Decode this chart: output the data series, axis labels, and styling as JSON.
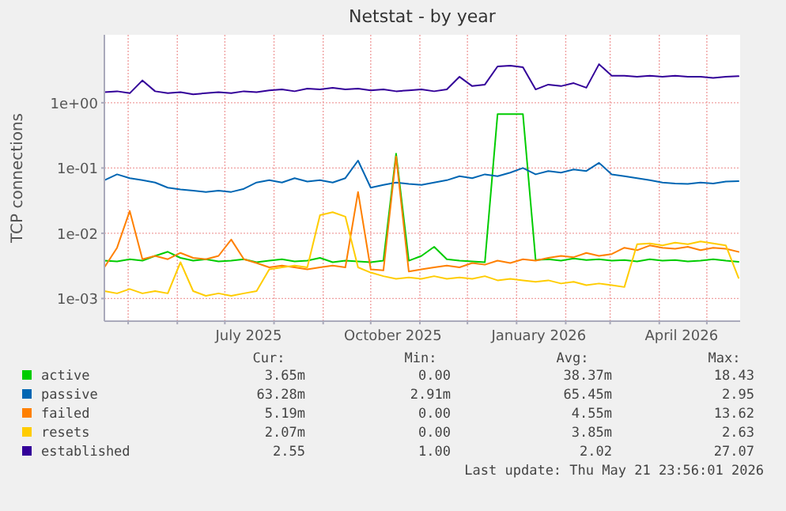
{
  "chart_data": {
    "type": "line",
    "title": "Netstat - by year",
    "ylabel": "TCP connections",
    "log": "y",
    "grid": true,
    "legend": "bottom",
    "marker": "none",
    "line_style": "solid",
    "xlim": [
      "2025-04-16",
      "2026-05-22"
    ],
    "ylim": [
      0.00045,
      11
    ],
    "xticks": [
      {
        "value": "2025-05-01",
        "label": null
      },
      {
        "value": "2025-06-01",
        "label": null
      },
      {
        "value": "2025-07-01",
        "label": null
      },
      {
        "value": "2025-07-16",
        "label": "July 2025"
      },
      {
        "value": "2025-08-01",
        "label": null
      },
      {
        "value": "2025-09-01",
        "label": null
      },
      {
        "value": "2025-10-01",
        "label": null
      },
      {
        "value": "2025-10-15",
        "label": "October 2025"
      },
      {
        "value": "2025-11-01",
        "label": null
      },
      {
        "value": "2025-12-01",
        "label": null
      },
      {
        "value": "2026-01-01",
        "label": null
      },
      {
        "value": "2026-01-15",
        "label": "January 2026"
      },
      {
        "value": "2026-02-01",
        "label": null
      },
      {
        "value": "2026-03-01",
        "label": null
      },
      {
        "value": "2026-04-01",
        "label": null
      },
      {
        "value": "2026-04-15",
        "label": "April 2026"
      },
      {
        "value": "2026-05-01",
        "label": null
      }
    ],
    "yticks": [
      {
        "value": 0.001,
        "label": "1e-03"
      },
      {
        "value": 0.01,
        "label": "1e-02"
      },
      {
        "value": 0.1,
        "label": "1e-01"
      },
      {
        "value": 1,
        "label": "1e+00"
      }
    ],
    "x": [
      "2025-04-16",
      "2025-04-24",
      "2025-05-02",
      "2025-05-10",
      "2025-05-18",
      "2025-05-26",
      "2025-06-03",
      "2025-06-11",
      "2025-06-19",
      "2025-06-27",
      "2025-07-05",
      "2025-07-13",
      "2025-07-21",
      "2025-07-29",
      "2025-08-06",
      "2025-08-14",
      "2025-08-22",
      "2025-08-30",
      "2025-09-07",
      "2025-09-15",
      "2025-09-23",
      "2025-10-01",
      "2025-10-09",
      "2025-10-17",
      "2025-10-25",
      "2025-11-02",
      "2025-11-10",
      "2025-11-18",
      "2025-11-26",
      "2025-12-04",
      "2025-12-12",
      "2025-12-20",
      "2025-12-28",
      "2026-01-05",
      "2026-01-13",
      "2026-01-21",
      "2026-01-29",
      "2026-02-06",
      "2026-02-14",
      "2026-02-22",
      "2026-03-02",
      "2026-03-10",
      "2026-03-18",
      "2026-03-26",
      "2026-04-03",
      "2026-04-11",
      "2026-04-19",
      "2026-04-27",
      "2026-05-05",
      "2026-05-13",
      "2026-05-21"
    ],
    "series": [
      {
        "name": "active",
        "color": "#00cc00",
        "values": [
          0.0038,
          0.0037,
          0.004,
          0.0038,
          0.0045,
          0.0052,
          0.0042,
          0.0038,
          0.004,
          0.0037,
          0.0038,
          0.004,
          0.0036,
          0.0038,
          0.004,
          0.0037,
          0.0038,
          0.0042,
          0.0036,
          0.0038,
          0.0037,
          0.0036,
          0.0038,
          0.166,
          0.0038,
          0.0045,
          0.0062,
          0.004,
          0.0038,
          0.0037,
          0.0036,
          0.67,
          0.67,
          0.67,
          0.0039,
          0.004,
          0.0038,
          0.0041,
          0.0039,
          0.004,
          0.0038,
          0.0039,
          0.0037,
          0.004,
          0.0038,
          0.0039,
          0.0037,
          0.0038,
          0.004,
          0.0038,
          0.00365
        ]
      },
      {
        "name": "passive",
        "color": "#0066b3",
        "values": [
          0.065,
          0.08,
          0.07,
          0.065,
          0.06,
          0.05,
          0.047,
          0.045,
          0.043,
          0.045,
          0.043,
          0.048,
          0.06,
          0.065,
          0.06,
          0.07,
          0.062,
          0.065,
          0.06,
          0.07,
          0.13,
          0.05,
          0.055,
          0.06,
          0.057,
          0.055,
          0.06,
          0.065,
          0.075,
          0.07,
          0.08,
          0.075,
          0.085,
          0.1,
          0.08,
          0.09,
          0.085,
          0.095,
          0.09,
          0.12,
          0.08,
          0.075,
          0.07,
          0.065,
          0.06,
          0.058,
          0.057,
          0.06,
          0.058,
          0.062,
          0.063
        ]
      },
      {
        "name": "failed",
        "color": "#ff8000",
        "values": [
          0.003,
          0.006,
          0.022,
          0.004,
          0.0045,
          0.004,
          0.005,
          0.0042,
          0.004,
          0.0045,
          0.008,
          0.004,
          0.0035,
          0.003,
          0.0032,
          0.003,
          0.0028,
          0.003,
          0.0032,
          0.003,
          0.043,
          0.0028,
          0.0027,
          0.15,
          0.0026,
          0.0028,
          0.003,
          0.0032,
          0.003,
          0.0035,
          0.0033,
          0.0038,
          0.0035,
          0.004,
          0.0038,
          0.0042,
          0.0045,
          0.0043,
          0.005,
          0.0045,
          0.0048,
          0.006,
          0.0055,
          0.0065,
          0.006,
          0.0058,
          0.0062,
          0.0055,
          0.006,
          0.0058,
          0.00519
        ]
      },
      {
        "name": "resets",
        "color": "#ffcc00",
        "values": [
          0.0013,
          0.0012,
          0.0014,
          0.0012,
          0.0013,
          0.0012,
          0.0036,
          0.0013,
          0.0011,
          0.0012,
          0.0011,
          0.0012,
          0.0013,
          0.0028,
          0.003,
          0.0032,
          0.003,
          0.019,
          0.021,
          0.018,
          0.003,
          0.0025,
          0.0022,
          0.002,
          0.0021,
          0.002,
          0.0022,
          0.002,
          0.0021,
          0.002,
          0.0022,
          0.0019,
          0.002,
          0.0019,
          0.0018,
          0.0019,
          0.0017,
          0.0018,
          0.0016,
          0.0017,
          0.0016,
          0.0015,
          0.0068,
          0.007,
          0.0065,
          0.0072,
          0.0068,
          0.0075,
          0.007,
          0.0065,
          0.00207
        ]
      },
      {
        "name": "established",
        "color": "#330099",
        "values": [
          1.45,
          1.5,
          1.4,
          2.2,
          1.5,
          1.4,
          1.45,
          1.35,
          1.4,
          1.45,
          1.4,
          1.5,
          1.45,
          1.55,
          1.6,
          1.5,
          1.65,
          1.6,
          1.7,
          1.6,
          1.65,
          1.55,
          1.6,
          1.5,
          1.55,
          1.6,
          1.5,
          1.6,
          2.5,
          1.8,
          1.9,
          3.6,
          3.7,
          3.5,
          1.6,
          1.9,
          1.8,
          2.0,
          1.7,
          3.9,
          2.6,
          2.6,
          2.5,
          2.6,
          2.5,
          2.6,
          2.5,
          2.5,
          2.4,
          2.5,
          2.55
        ]
      }
    ],
    "annotations": [
      "Cur:",
      "Min:",
      "Avg:",
      "Max:",
      "3.65m",
      "0.00",
      "38.37m",
      "18.43",
      "63.28m",
      "2.91m",
      "65.45m",
      "2.95",
      "5.19m",
      "0.00",
      "4.55m",
      "13.62",
      "2.07m",
      "0.00",
      "3.85m",
      "2.63",
      "2.55",
      "1.00",
      "2.02",
      "27.07",
      "Last update: Thu May 21 23:56:01 2026"
    ]
  }
}
